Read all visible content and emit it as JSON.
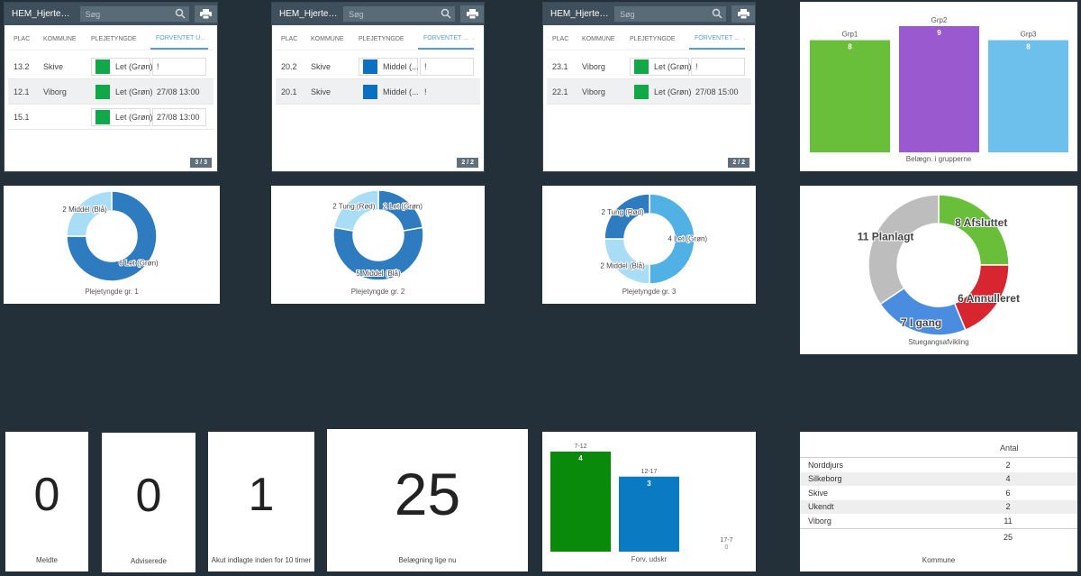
{
  "tables": [
    {
      "title": "HEM_Hjerteafsn...",
      "search_placeholder": "Søg",
      "headers": [
        "PLAC",
        "KOMMUNE",
        "PLEJETYNGDE",
        "FORVENTET U..."
      ],
      "rows": [
        {
          "plac": "13.2",
          "kommune": "Skive",
          "plejetyngde": "Let (Grøn)",
          "color": "#12a84a",
          "forventet": "!"
        },
        {
          "plac": "12.1",
          "kommune": "Viborg",
          "plejetyngde": "Let (Grøn)",
          "color": "#12a84a",
          "forventet": "27/08 13:00"
        },
        {
          "plac": "15.1",
          "kommune": "",
          "plejetyngde": "Let (Grøn)",
          "color": "#12a84a",
          "forventet": "27/08 13:00"
        }
      ],
      "pager": "3 / 3"
    },
    {
      "title": "HEM_Hjerteafs...",
      "search_placeholder": "Søg",
      "headers": [
        "PLAC",
        "KOMMUNE",
        "PLEJETYNGDE",
        "FORVENTET ..."
      ],
      "rows": [
        {
          "plac": "20.2",
          "kommune": "Skive",
          "plejetyngde": "Middel (...",
          "color": "#0b6fc2",
          "forventet": "!"
        },
        {
          "plac": "20.1",
          "kommune": "Skive",
          "plejetyngde": "Middel (...",
          "color": "#0b6fc2",
          "forventet": "!"
        }
      ],
      "pager": "2 / 2"
    },
    {
      "title": "HEM_Hjerteafs...",
      "search_placeholder": "Søg",
      "headers": [
        "PLAC",
        "KOMMUNE",
        "PLEJETYNGDE",
        "FORVENTET ..."
      ],
      "rows": [
        {
          "plac": "23.1",
          "kommune": "Viborg",
          "plejetyngde": "Let (Grøn)",
          "color": "#12a84a",
          "forventet": "!"
        },
        {
          "plac": "22.1",
          "kommune": "Viborg",
          "plejetyngde": "Let (Grøn)",
          "color": "#12a84a",
          "forventet": "27/08 15:00"
        }
      ],
      "pager": "2 / 2"
    }
  ],
  "chart_data": [
    {
      "type": "bar",
      "categories": [
        "Grp1",
        "Grp2",
        "Grp3"
      ],
      "values": [
        8,
        9,
        8
      ],
      "colors": [
        "#6abf3a",
        "#9b59cf",
        "#6ec0ec"
      ],
      "title": "Belægn. i grupperne",
      "ylim": [
        0,
        9
      ]
    },
    {
      "type": "pie",
      "title": "Plejetyngde gr. 1",
      "slices": [
        {
          "label": "Let (Grøn)",
          "value": 6,
          "color": "#2e7bbf"
        },
        {
          "label": "Middel (Blå)",
          "value": 2,
          "color": "#a9dcf5"
        }
      ]
    },
    {
      "type": "pie",
      "title": "Plejetyngde gr. 2",
      "slices": [
        {
          "label": "Let (Grøn)",
          "value": 2,
          "color": "#2e7bbf"
        },
        {
          "label": "Middel (Blå)",
          "value": 5,
          "color": "#2e7bbf"
        },
        {
          "label": "Tung (Rød)",
          "value": 2,
          "color": "#a9dcf5"
        }
      ]
    },
    {
      "type": "pie",
      "title": "Plejetyngde gr. 3",
      "slices": [
        {
          "label": "Let (Grøn)",
          "value": 4,
          "color": "#52b1e4"
        },
        {
          "label": "Middel (Blå)",
          "value": 2,
          "color": "#a9dcf5"
        },
        {
          "label": "Tung (Rød)",
          "value": 2,
          "color": "#2e7bbf"
        }
      ]
    },
    {
      "type": "pie",
      "title": "Stuegangsafvikling",
      "slices": [
        {
          "label": "Afsluttet",
          "value": 8,
          "color": "#6abf3a"
        },
        {
          "label": "Annulleret",
          "value": 6,
          "color": "#d7262f"
        },
        {
          "label": "I gang",
          "value": 7,
          "color": "#4a8de0"
        },
        {
          "label": "Planlagt",
          "value": 11,
          "color": "#bdbdbd"
        }
      ]
    },
    {
      "type": "bar",
      "title": "Forv. udskr",
      "categories": [
        "7-12",
        "12-17",
        "17-7"
      ],
      "values": [
        4,
        3,
        0
      ],
      "colors": [
        "#0a8a0a",
        "#0a7bc2",
        "#0a7bc2"
      ],
      "ylim": [
        0,
        4
      ]
    },
    {
      "type": "table",
      "title": "Kommune",
      "column": "Antal",
      "rows": [
        {
          "name": "Norddjurs",
          "value": 2
        },
        {
          "name": "Silkeborg",
          "value": 4
        },
        {
          "name": "Skive",
          "value": 6
        },
        {
          "name": "Ukendt",
          "value": 2
        },
        {
          "name": "Viborg",
          "value": 11
        }
      ],
      "total": 25
    }
  ],
  "kpis": [
    {
      "value": "0",
      "label": "Meldte"
    },
    {
      "value": "0",
      "label": "Adviserede"
    },
    {
      "value": "1",
      "label": "Akut indlagte inden for 10 timer"
    },
    {
      "value": "25",
      "label": "Belægning lige nu"
    }
  ]
}
